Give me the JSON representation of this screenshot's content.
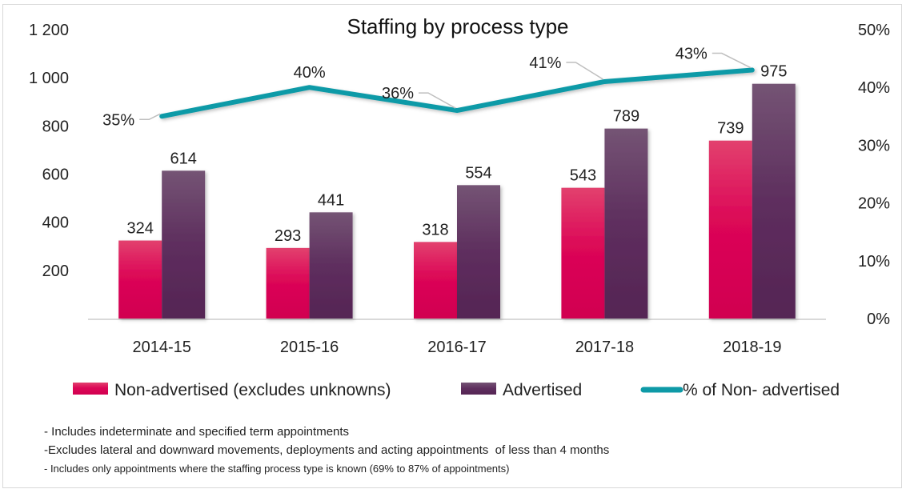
{
  "chart_data": {
    "type": "bar",
    "title": "Staffing by process type",
    "xlabel": "",
    "ylabel": "",
    "categories": [
      "2014-15",
      "2015-16",
      "2016-17",
      "2017-18",
      "2018-19"
    ],
    "series": [
      {
        "name": "Non-advertised (excludes unknowns)",
        "type": "bar",
        "axis": "left",
        "color": "#e0115f",
        "values": [
          324,
          293,
          318,
          543,
          739
        ]
      },
      {
        "name": "Advertised",
        "type": "bar",
        "axis": "left",
        "color": "#5c2a5c",
        "values": [
          614,
          441,
          554,
          789,
          975
        ]
      },
      {
        "name": "% of Non- advertised",
        "type": "line",
        "axis": "right",
        "color": "#0e9aa7",
        "values": [
          35,
          40,
          36,
          41,
          43
        ],
        "labels": [
          "35%",
          "40%",
          "36%",
          "41%",
          "43%"
        ]
      }
    ],
    "ylim": [
      0,
      1200
    ],
    "yticks": [
      200,
      400,
      600,
      800,
      1000,
      1200
    ],
    "ytick_labels": [
      "200",
      "400",
      "600",
      "800",
      "1 000",
      "1 200"
    ],
    "y2lim": [
      0,
      50
    ],
    "y2ticks": [
      0,
      10,
      20,
      30,
      40,
      50
    ],
    "y2tick_labels": [
      "0%",
      "10%",
      "20%",
      "30%",
      "40%",
      "50%"
    ],
    "grid": false,
    "legend": "bottom"
  },
  "notes": [
    "- Includes indeterminate and specified term appointments",
    "-Excludes lateral and downward movements, deployments and acting appointments  of less than 4 months",
    "- Includes only appointments where the staffing process type is known (69% to 87% of appointments)"
  ]
}
